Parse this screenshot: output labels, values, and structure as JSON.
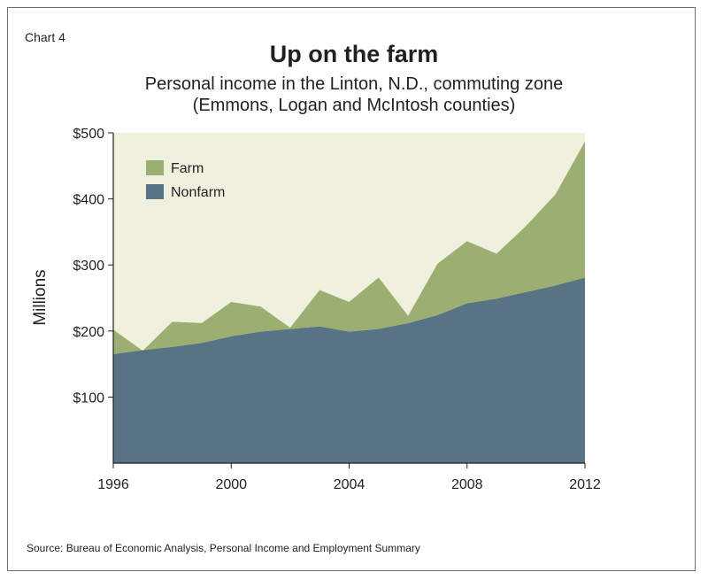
{
  "chart_label": "Chart 4",
  "chart_data": {
    "type": "area",
    "stacked": true,
    "title": "Up on the farm",
    "subtitle_lines": [
      "Personal income in the Linton, N.D., commuting zone",
      "(Emmons, Logan and McIntosh counties)"
    ],
    "xlabel": "",
    "ylabel": "Millions",
    "x": [
      1996,
      1997,
      1998,
      1999,
      2000,
      2001,
      2002,
      2003,
      2004,
      2005,
      2006,
      2007,
      2008,
      2009,
      2010,
      2011,
      2012
    ],
    "series": [
      {
        "name": "Nonfarm",
        "color": "#577384",
        "values": [
          165,
          171,
          176,
          182,
          192,
          199,
          203,
          207,
          199,
          203,
          212,
          224,
          242,
          249,
          259,
          269,
          281
        ]
      },
      {
        "name": "Farm",
        "color": "#9caf72",
        "values": [
          37,
          -1,
          38,
          30,
          52,
          38,
          2,
          55,
          45,
          78,
          11,
          78,
          94,
          68,
          100,
          138,
          206
        ]
      }
    ],
    "xlim": [
      1996,
      2012
    ],
    "ylim": [
      0,
      500
    ],
    "x_ticks": [
      "1996",
      "2000",
      "2004",
      "2008",
      "2012"
    ],
    "x_tick_values": [
      1996,
      2000,
      2004,
      2008,
      2012
    ],
    "y_ticks": [
      "$100",
      "$200",
      "$300",
      "$400",
      "$500"
    ],
    "y_tick_values": [
      100,
      200,
      300,
      400,
      500
    ],
    "plot_background": "#eff1de",
    "grid": false,
    "legend": {
      "placement": "top-left",
      "entries": [
        "Farm",
        "Nonfarm"
      ]
    }
  },
  "source": "Source: Bureau of Economic Analysis, Personal Income and Employment Summary"
}
